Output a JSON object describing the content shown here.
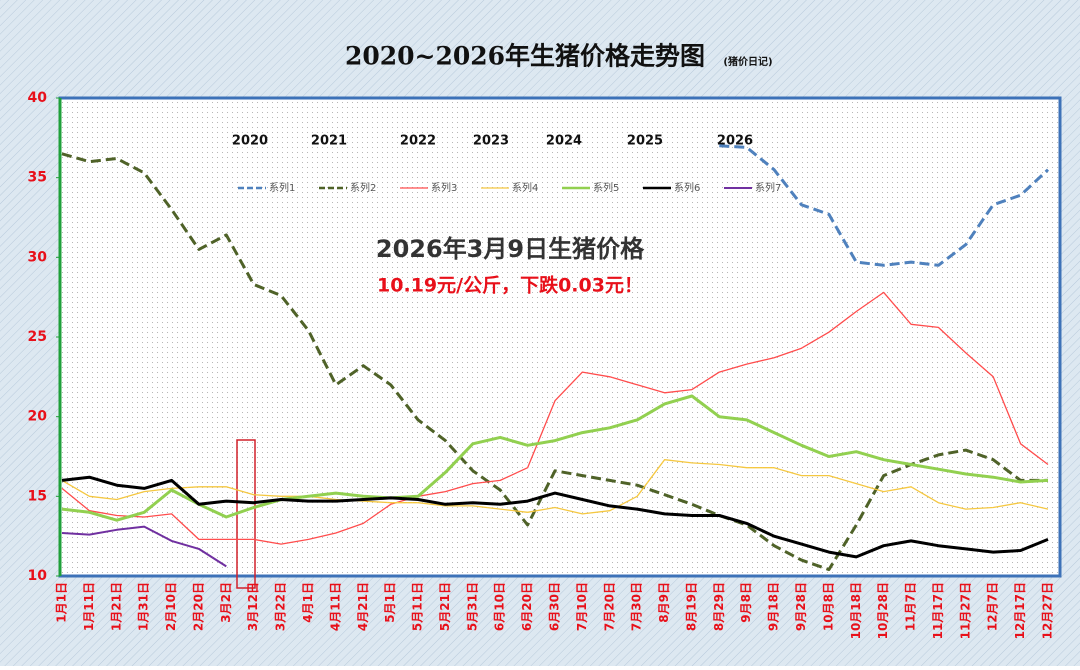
{
  "chart_data": {
    "type": "line",
    "title": "2020~2026年生猪价格走势图",
    "subtitle": "(猪价日记)",
    "annotations": [
      "2026年3月9日生猪价格",
      "10.19元/公斤，下跌0.03元！"
    ],
    "year_labels": [
      "2020",
      "2021",
      "2022",
      "2023",
      "2024",
      "2025",
      "2026"
    ],
    "categories": [
      "1月1日",
      "1月11日",
      "1月21日",
      "1月31日",
      "2月10日",
      "2月20日",
      "3月2日",
      "3月12日",
      "3月22日",
      "4月1日",
      "4月11日",
      "4月21日",
      "5月1日",
      "5月11日",
      "5月21日",
      "5月31日",
      "6月10日",
      "6月20日",
      "6月30日",
      "7月10日",
      "7月20日",
      "7月30日",
      "8月9日",
      "8月19日",
      "8月29日",
      "9月8日",
      "9月18日",
      "9月28日",
      "10月8日",
      "10月18日",
      "10月28日",
      "11月7日",
      "11月17日",
      "11月27日",
      "12月7日",
      "12月17日",
      "12月27日"
    ],
    "series": [
      {
        "name": "系列1",
        "color": "#4f81bd",
        "dashed": true,
        "width": 3,
        "values": [
          null,
          null,
          null,
          null,
          null,
          null,
          null,
          null,
          null,
          null,
          null,
          null,
          null,
          null,
          null,
          null,
          null,
          null,
          null,
          null,
          null,
          null,
          null,
          null,
          37,
          36.9,
          35.5,
          33.3,
          32.7,
          29.7,
          29.5,
          29.7,
          29.5,
          30.8,
          33.3,
          33.9,
          35.5
        ]
      },
      {
        "name": "系列2",
        "color": "#4f6228",
        "dashed": true,
        "width": 3,
        "values": [
          36.5,
          36.0,
          36.2,
          35.3,
          33,
          30.5,
          31.4,
          28.3,
          27.6,
          25.4,
          22,
          23.2,
          22,
          19.8,
          18.5,
          16.6,
          15.4,
          13.2,
          16.6,
          16.3,
          16,
          15.7,
          15.1,
          14.5,
          13.8,
          13.2,
          11.9,
          11,
          10.4,
          13.2,
          16.3,
          17,
          17.6,
          17.9,
          17.3,
          16,
          16
        ]
      },
      {
        "name": "系列3",
        "color": "#ff4d4d",
        "dashed": false,
        "width": 1.3,
        "values": [
          15.5,
          14.1,
          13.8,
          13.7,
          13.9,
          12.3,
          12.3,
          12.3,
          12,
          12.3,
          12.7,
          13.3,
          14.5,
          15,
          15.3,
          15.8,
          16,
          16.8,
          21,
          22.8,
          22.5,
          22,
          21.5,
          21.7,
          22.8,
          23.3,
          23.7,
          24.3,
          25.3,
          26.6,
          27.8,
          25.8,
          25.6,
          24,
          22.5,
          18.3,
          17
        ]
      },
      {
        "name": "系列4",
        "color": "#f5c842",
        "dashed": false,
        "width": 1.3,
        "values": [
          16,
          15,
          14.8,
          15.3,
          15.5,
          15.6,
          15.6,
          15.1,
          15,
          15,
          14.8,
          14.7,
          14.6,
          14.6,
          14.4,
          14.4,
          14.2,
          14,
          14.3,
          13.9,
          14.1,
          15,
          17.3,
          17.1,
          17,
          16.8,
          16.8,
          16.3,
          16.3,
          15.8,
          15.3,
          15.6,
          14.6,
          14.2,
          14.3,
          14.6,
          14.2
        ]
      },
      {
        "name": "系列5",
        "color": "#92d050",
        "dashed": false,
        "width": 3,
        "values": [
          14.2,
          14,
          13.5,
          14,
          15.4,
          14.5,
          13.7,
          14.3,
          14.8,
          15,
          15.2,
          15,
          14.9,
          15,
          16.5,
          18.3,
          18.7,
          18.2,
          18.5,
          19,
          19.3,
          19.8,
          20.8,
          21.3,
          20,
          19.8,
          19,
          18.2,
          17.5,
          17.8,
          17.3,
          17,
          16.7,
          16.4,
          16.2,
          15.9,
          16
        ]
      },
      {
        "name": "系列6",
        "color": "#000000",
        "dashed": false,
        "width": 3,
        "values": [
          16,
          16.2,
          15.7,
          15.5,
          16,
          14.5,
          14.7,
          14.6,
          14.8,
          14.7,
          14.7,
          14.8,
          14.9,
          14.8,
          14.5,
          14.6,
          14.5,
          14.7,
          15.2,
          14.8,
          14.4,
          14.2,
          13.9,
          13.8,
          13.8,
          13.3,
          12.5,
          12,
          11.5,
          11.2,
          11.9,
          12.2,
          11.9,
          11.7,
          11.5,
          11.6,
          12.3
        ]
      },
      {
        "name": "系列7",
        "color": "#7030a0",
        "dashed": false,
        "width": 2,
        "values": [
          12.7,
          12.6,
          12.9,
          13.1,
          12.2,
          11.7,
          10.6,
          null,
          null,
          null,
          null,
          null,
          null,
          null,
          null,
          null,
          null,
          null,
          null,
          null,
          null,
          null,
          null,
          null,
          null,
          null,
          null,
          null,
          null,
          null,
          null,
          null,
          null,
          null,
          null,
          null,
          null
        ]
      }
    ],
    "ylim": [
      10,
      40
    ],
    "yticks": [
      10,
      15,
      20,
      25,
      30,
      35,
      40
    ],
    "grid": false
  }
}
